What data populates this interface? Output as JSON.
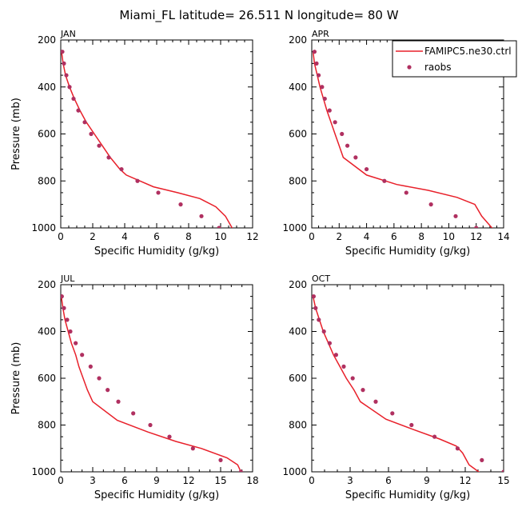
{
  "figure": {
    "title": "Miami_FL  latitude= 26.511 N longitude= 80 W"
  },
  "colors": {
    "model": "#e8202a",
    "obs": "#b03060",
    "axis": "#000000"
  },
  "legend": {
    "model_label": "FAMIPC5.ne30.ctrl",
    "obs_label": "raobs",
    "placement": "top-right of APR panel"
  },
  "chart_data": [
    {
      "type": "line",
      "panel": "JAN",
      "title": "JAN",
      "xlabel": "Specific Humidity (g/kg)",
      "ylabel": "Pressure (mb)",
      "xlim": [
        0,
        12
      ],
      "ylim": [
        1000,
        200
      ],
      "y_inverted": true,
      "xticks": [
        "0",
        "2",
        "4",
        "6",
        "8",
        "10",
        "12"
      ],
      "yticks": [
        "200",
        "400",
        "600",
        "800",
        "1000"
      ],
      "series": [
        {
          "name": "FAMIPC5.ne30.ctrl",
          "kind": "line",
          "points": [
            [
              0.05,
              250
            ],
            [
              0.15,
              300
            ],
            [
              0.3,
              350
            ],
            [
              0.55,
              400
            ],
            [
              0.85,
              450
            ],
            [
              1.2,
              500
            ],
            [
              1.6,
              550
            ],
            [
              2.1,
              600
            ],
            [
              2.6,
              650
            ],
            [
              3.1,
              700
            ],
            [
              3.7,
              750
            ],
            [
              4.1,
              775
            ],
            [
              5.8,
              825
            ],
            [
              7.3,
              850
            ],
            [
              8.7,
              875
            ],
            [
              9.7,
              910
            ],
            [
              10.3,
              950
            ],
            [
              10.8,
              1010
            ]
          ]
        },
        {
          "name": "raobs",
          "kind": "scatter",
          "points": [
            [
              0.1,
              250
            ],
            [
              0.2,
              300
            ],
            [
              0.35,
              350
            ],
            [
              0.55,
              400
            ],
            [
              0.8,
              450
            ],
            [
              1.1,
              500
            ],
            [
              1.5,
              550
            ],
            [
              1.9,
              600
            ],
            [
              2.4,
              650
            ],
            [
              3.0,
              700
            ],
            [
              3.8,
              750
            ],
            [
              4.8,
              800
            ],
            [
              6.1,
              850
            ],
            [
              7.5,
              900
            ],
            [
              8.8,
              950
            ],
            [
              9.9,
              1000
            ]
          ]
        }
      ]
    },
    {
      "type": "line",
      "panel": "APR",
      "title": "APR",
      "xlabel": "Specific Humidity (g/kg)",
      "ylabel": "",
      "xlim": [
        0,
        14
      ],
      "ylim": [
        1000,
        200
      ],
      "y_inverted": true,
      "xticks": [
        "0",
        "2",
        "4",
        "6",
        "8",
        "10",
        "12",
        "14"
      ],
      "yticks": [
        "200",
        "400",
        "600",
        "800",
        "1000"
      ],
      "series": [
        {
          "name": "FAMIPC5.ne30.ctrl",
          "kind": "line",
          "points": [
            [
              0.1,
              250
            ],
            [
              0.2,
              300
            ],
            [
              0.4,
              350
            ],
            [
              0.6,
              400
            ],
            [
              0.85,
              450
            ],
            [
              1.1,
              500
            ],
            [
              1.4,
              550
            ],
            [
              1.7,
              600
            ],
            [
              2.0,
              650
            ],
            [
              2.3,
              700
            ],
            [
              4.0,
              775
            ],
            [
              6.2,
              815
            ],
            [
              8.5,
              840
            ],
            [
              10.6,
              870
            ],
            [
              11.9,
              900
            ],
            [
              12.4,
              950
            ],
            [
              13.3,
              1010
            ]
          ]
        },
        {
          "name": "raobs",
          "kind": "scatter",
          "points": [
            [
              0.2,
              250
            ],
            [
              0.35,
              300
            ],
            [
              0.5,
              350
            ],
            [
              0.75,
              400
            ],
            [
              0.95,
              450
            ],
            [
              1.3,
              500
            ],
            [
              1.7,
              550
            ],
            [
              2.2,
              600
            ],
            [
              2.6,
              650
            ],
            [
              3.2,
              700
            ],
            [
              4.0,
              750
            ],
            [
              5.3,
              800
            ],
            [
              6.9,
              850
            ],
            [
              8.7,
              900
            ],
            [
              10.5,
              950
            ],
            [
              12.0,
              1000
            ]
          ]
        }
      ]
    },
    {
      "type": "line",
      "panel": "JUL",
      "title": "JUL",
      "xlabel": "Specific Humidity (g/kg)",
      "ylabel": "Pressure (mb)",
      "xlim": [
        0,
        18
      ],
      "ylim": [
        1000,
        200
      ],
      "y_inverted": true,
      "xticks": [
        "0",
        "3",
        "6",
        "9",
        "12",
        "15",
        "18"
      ],
      "yticks": [
        "200",
        "400",
        "600",
        "800",
        "1000"
      ],
      "series": [
        {
          "name": "FAMIPC5.ne30.ctrl",
          "kind": "line",
          "points": [
            [
              0.05,
              250
            ],
            [
              0.2,
              300
            ],
            [
              0.4,
              350
            ],
            [
              0.7,
              400
            ],
            [
              1.0,
              450
            ],
            [
              1.4,
              500
            ],
            [
              1.7,
              550
            ],
            [
              2.1,
              600
            ],
            [
              2.5,
              650
            ],
            [
              3.0,
              700
            ],
            [
              5.3,
              780
            ],
            [
              8.2,
              830
            ],
            [
              10.8,
              870
            ],
            [
              13.2,
              900
            ],
            [
              15.6,
              940
            ],
            [
              16.6,
              970
            ],
            [
              17.0,
              1010
            ]
          ]
        },
        {
          "name": "raobs",
          "kind": "scatter",
          "points": [
            [
              0.1,
              250
            ],
            [
              0.3,
              300
            ],
            [
              0.6,
              350
            ],
            [
              0.9,
              400
            ],
            [
              1.4,
              450
            ],
            [
              2.0,
              500
            ],
            [
              2.8,
              550
            ],
            [
              3.6,
              600
            ],
            [
              4.4,
              650
            ],
            [
              5.4,
              700
            ],
            [
              6.8,
              750
            ],
            [
              8.4,
              800
            ],
            [
              10.2,
              850
            ],
            [
              12.4,
              900
            ],
            [
              15.0,
              950
            ],
            [
              16.9,
              1000
            ]
          ]
        }
      ]
    },
    {
      "type": "line",
      "panel": "OCT",
      "title": "OCT",
      "xlabel": "Specific Humidity (g/kg)",
      "ylabel": "",
      "xlim": [
        0,
        15
      ],
      "ylim": [
        1000,
        200
      ],
      "y_inverted": true,
      "xticks": [
        "0",
        "3",
        "6",
        "9",
        "12",
        "15"
      ],
      "yticks": [
        "200",
        "400",
        "600",
        "800",
        "1000"
      ],
      "series": [
        {
          "name": "FAMIPC5.ne30.ctrl",
          "kind": "line",
          "points": [
            [
              0.1,
              250
            ],
            [
              0.3,
              300
            ],
            [
              0.6,
              350
            ],
            [
              0.9,
              400
            ],
            [
              1.3,
              450
            ],
            [
              1.7,
              500
            ],
            [
              2.2,
              550
            ],
            [
              2.7,
              600
            ],
            [
              3.3,
              650
            ],
            [
              3.8,
              700
            ],
            [
              5.8,
              775
            ],
            [
              8.0,
              820
            ],
            [
              10.0,
              860
            ],
            [
              11.3,
              890
            ],
            [
              11.8,
              920
            ],
            [
              12.3,
              970
            ],
            [
              13.3,
              1010
            ]
          ]
        },
        {
          "name": "raobs",
          "kind": "scatter",
          "points": [
            [
              0.15,
              250
            ],
            [
              0.3,
              300
            ],
            [
              0.55,
              350
            ],
            [
              0.95,
              400
            ],
            [
              1.4,
              450
            ],
            [
              1.9,
              500
            ],
            [
              2.5,
              550
            ],
            [
              3.2,
              600
            ],
            [
              4.0,
              650
            ],
            [
              5.0,
              700
            ],
            [
              6.3,
              750
            ],
            [
              7.8,
              800
            ],
            [
              9.6,
              850
            ],
            [
              11.4,
              900
            ],
            [
              13.3,
              950
            ],
            [
              15.0,
              1000
            ]
          ]
        }
      ]
    }
  ]
}
